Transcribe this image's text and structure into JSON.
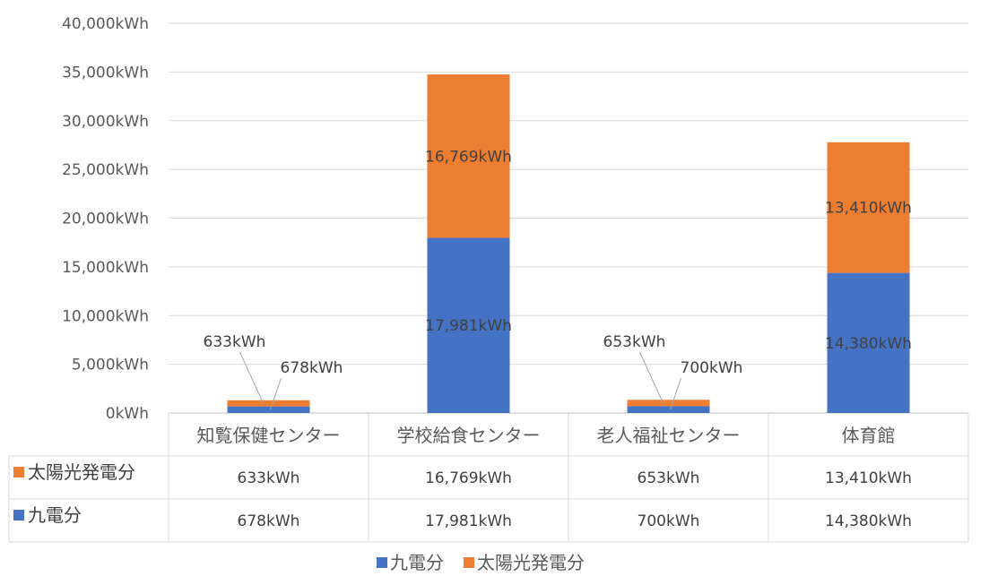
{
  "chart_data": {
    "type": "bar",
    "stacked": true,
    "categories": [
      "知覧保健センター",
      "学校給食センター",
      "老人福祉センター",
      "体育館"
    ],
    "series": [
      {
        "name": "九電分",
        "color": "#4472C4",
        "values": [
          678,
          17981,
          700,
          14380
        ],
        "labels": [
          "678kWh",
          "17,981kWh",
          "700kWh",
          "14,380kWh"
        ]
      },
      {
        "name": "太陽光発電分",
        "color": "#ED7D31",
        "values": [
          633,
          16769,
          653,
          13410
        ],
        "labels": [
          "633kWh",
          "16,769kWh",
          "653kWh",
          "13,410kWh"
        ]
      }
    ],
    "ylim": [
      0,
      40000
    ],
    "yticks": [
      0,
      5000,
      10000,
      15000,
      20000,
      25000,
      30000,
      35000,
      40000
    ],
    "ytick_labels": [
      "0kWh",
      "5,000kWh",
      "10,000kWh",
      "15,000kWh",
      "20,000kWh",
      "25,000kWh",
      "30,000kWh",
      "35,000kWh",
      "40,000kWh"
    ],
    "grid": true,
    "data_table": true,
    "legend_position": "bottom",
    "legend": [
      "九電分",
      "太陽光発電分"
    ]
  }
}
